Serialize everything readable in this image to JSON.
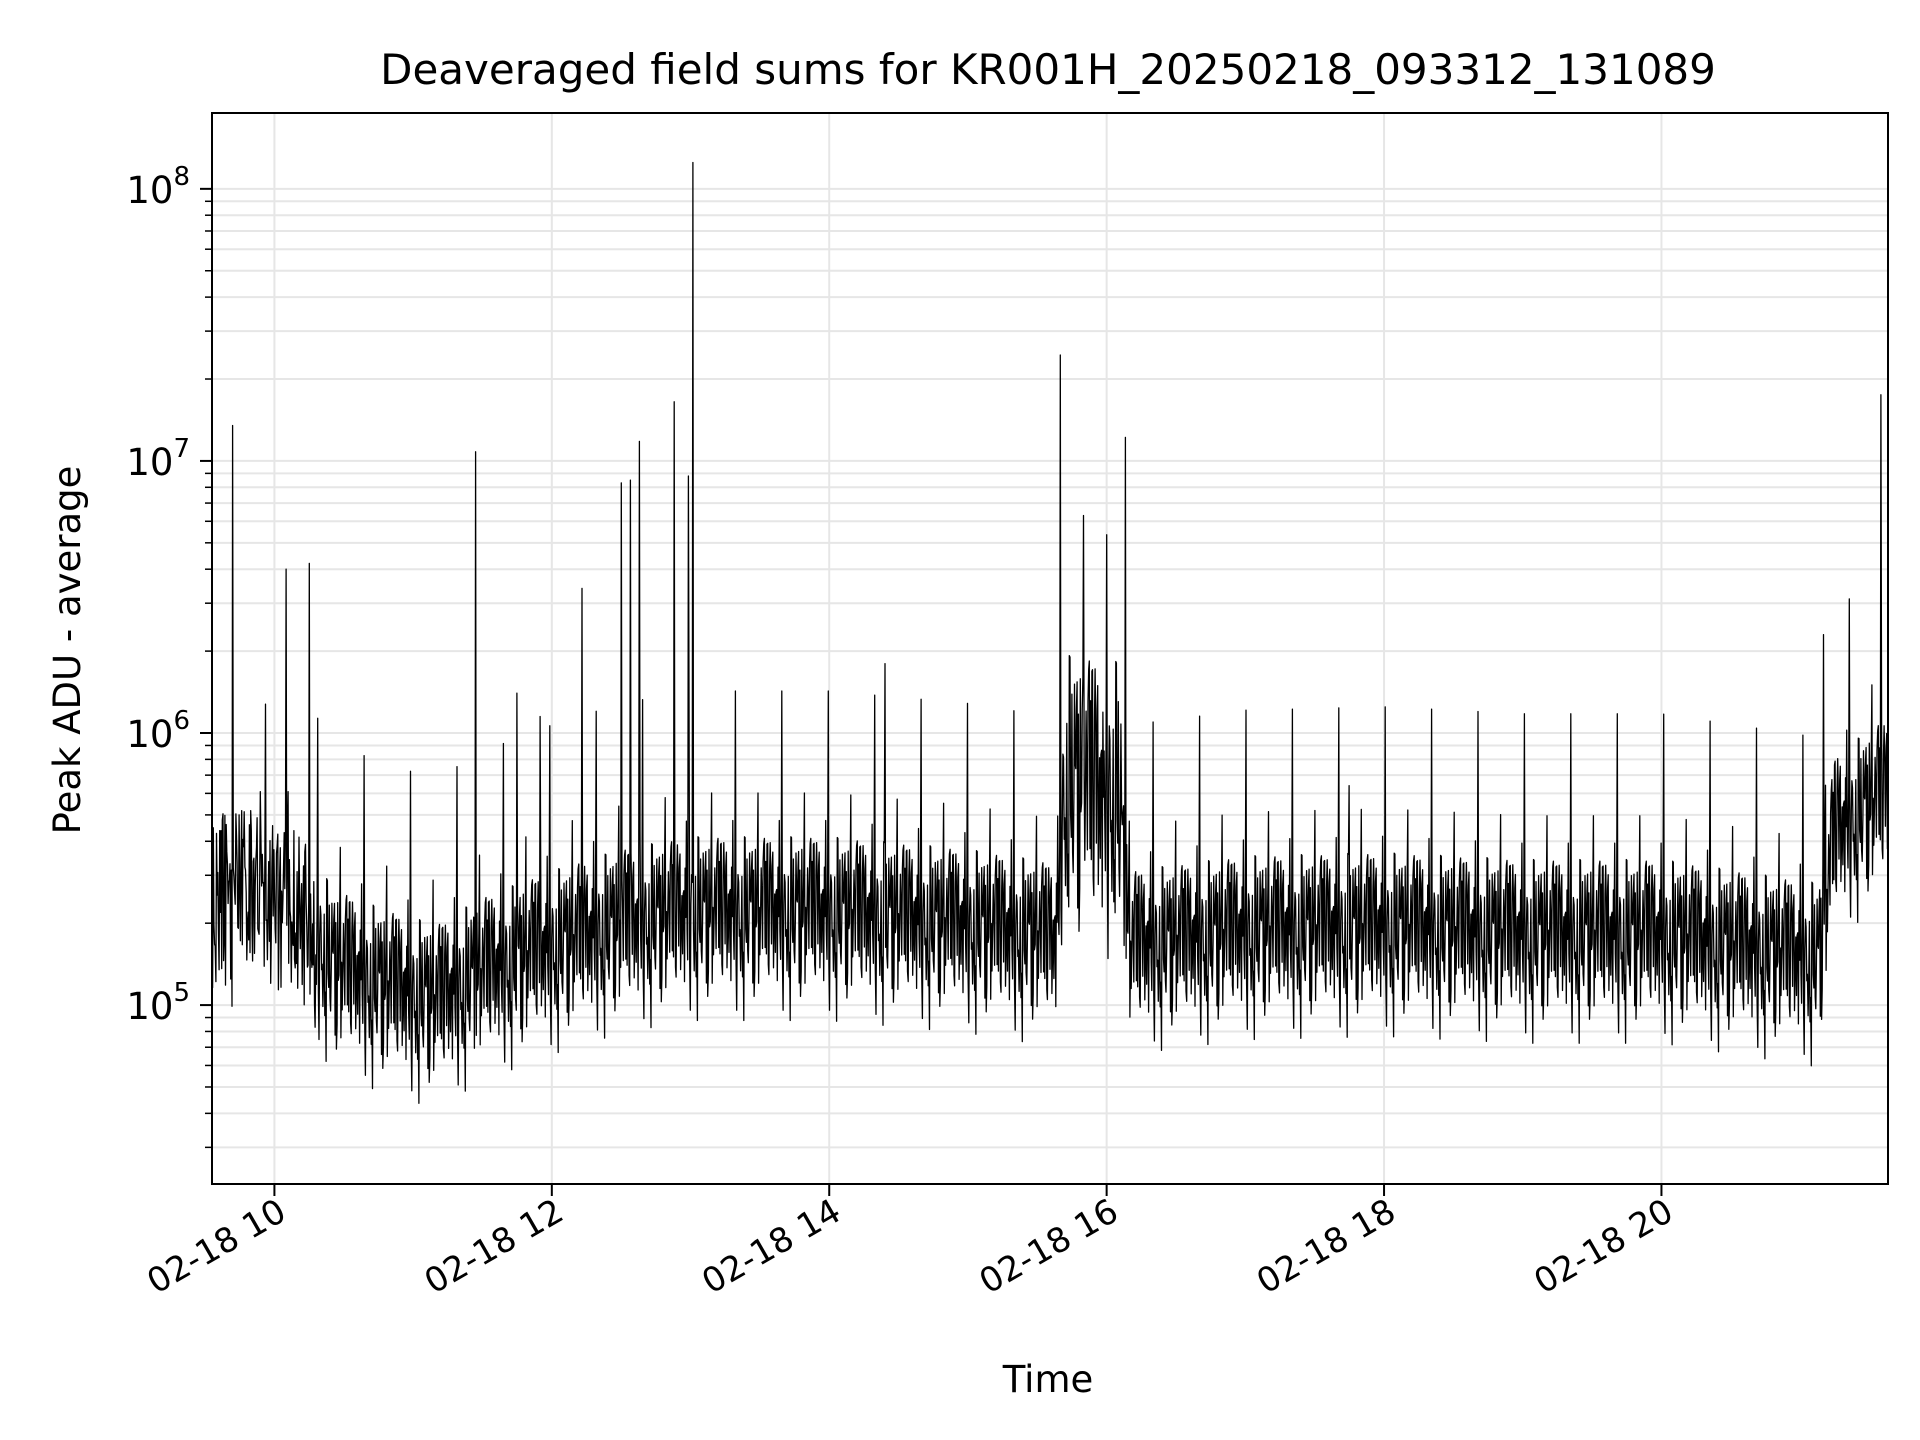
{
  "chart_data": {
    "type": "line",
    "title": "Deaveraged field sums for KR001H_20250218_093312_131089",
    "xlabel": "Time",
    "ylabel": "Peak ADU - average",
    "yscale": "log",
    "xlim": [
      "02-18 09:33",
      "02-18 21:38"
    ],
    "ylim": [
      22000,
      190000000
    ],
    "x_ticks": [
      {
        "t": "02-18 10:00",
        "label": "02-18 10"
      },
      {
        "t": "02-18 12:00",
        "label": "02-18 12"
      },
      {
        "t": "02-18 14:00",
        "label": "02-18 14"
      },
      {
        "t": "02-18 16:00",
        "label": "02-18 16"
      },
      {
        "t": "02-18 18:00",
        "label": "02-18 18"
      },
      {
        "t": "02-18 20:00",
        "label": "02-18 20"
      }
    ],
    "y_ticks": [
      {
        "value": 100000,
        "base": "10",
        "exp": "5"
      },
      {
        "value": 1000000,
        "base": "10",
        "exp": "6"
      },
      {
        "value": 10000000,
        "base": "10",
        "exp": "7"
      },
      {
        "value": 100000000,
        "base": "10",
        "exp": "8"
      }
    ],
    "grid": true,
    "line_color": "#000000",
    "baseline": [
      {
        "t": "02-18 09:33",
        "value": 230000
      },
      {
        "t": "02-18 09:50",
        "value": 280000
      },
      {
        "t": "02-18 10:10",
        "value": 210000
      },
      {
        "t": "02-18 10:25",
        "value": 130000
      },
      {
        "t": "02-18 10:45",
        "value": 110000
      },
      {
        "t": "02-18 11:10",
        "value": 95000
      },
      {
        "t": "02-18 11:30",
        "value": 120000
      },
      {
        "t": "02-18 12:00",
        "value": 150000
      },
      {
        "t": "02-18 12:30",
        "value": 180000
      },
      {
        "t": "02-18 13:00",
        "value": 200000
      },
      {
        "t": "02-18 14:00",
        "value": 200000
      },
      {
        "t": "02-18 15:00",
        "value": 180000
      },
      {
        "t": "02-18 15:38",
        "value": 160000
      },
      {
        "t": "02-18 15:42",
        "value": 550000
      },
      {
        "t": "02-18 16:05",
        "value": 520000
      },
      {
        "t": "02-18 16:10",
        "value": 150000
      },
      {
        "t": "02-18 17:00",
        "value": 170000
      },
      {
        "t": "02-18 18:00",
        "value": 175000
      },
      {
        "t": "02-18 19:00",
        "value": 165000
      },
      {
        "t": "02-18 20:00",
        "value": 165000
      },
      {
        "t": "02-18 21:08",
        "value": 135000
      },
      {
        "t": "02-18 21:15",
        "value": 400000
      },
      {
        "t": "02-18 21:38",
        "value": 550000
      }
    ],
    "spikes": [
      {
        "t": "02-18 09:42",
        "value": 13500000
      },
      {
        "t": "02-18 10:05",
        "value": 4000000
      },
      {
        "t": "02-18 10:15",
        "value": 4200000
      },
      {
        "t": "02-18 11:27",
        "value": 10800000
      },
      {
        "t": "02-18 11:45",
        "value": 1400000
      },
      {
        "t": "02-18 11:55",
        "value": 1150000
      },
      {
        "t": "02-18 12:13",
        "value": 3400000
      },
      {
        "t": "02-18 12:30",
        "value": 8300000
      },
      {
        "t": "02-18 12:34",
        "value": 8500000
      },
      {
        "t": "02-18 12:38",
        "value": 11800000
      },
      {
        "t": "02-18 12:53",
        "value": 16500000
      },
      {
        "t": "02-18 12:59",
        "value": 8800000
      },
      {
        "t": "02-18 13:01",
        "value": 125000000
      },
      {
        "t": "02-18 14:24",
        "value": 1800000
      },
      {
        "t": "02-18 15:40",
        "value": 24500000
      },
      {
        "t": "02-18 15:50",
        "value": 6300000
      },
      {
        "t": "02-18 16:08",
        "value": 12200000
      },
      {
        "t": "02-18 17:45",
        "value": 640000
      },
      {
        "t": "02-18 21:10",
        "value": 2300000
      },
      {
        "t": "02-18 21:35",
        "value": 17500000
      }
    ]
  }
}
